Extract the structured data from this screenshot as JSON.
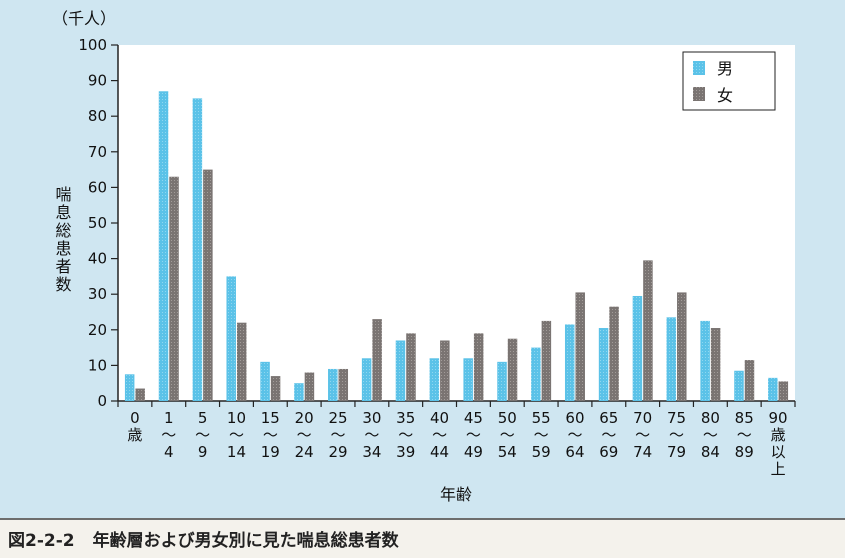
{
  "caption": {
    "figure_number": "図2-2-2",
    "title": "年齢層および男女別に見た喘息総患者数"
  },
  "colors": {
    "panel_background": "#cfe6f1",
    "plot_background": "#ffffff",
    "male": "#5bc2e8",
    "female": "#7a7472",
    "axis": "#222222"
  },
  "chart_data": {
    "type": "bar",
    "unit_label": "（千人）",
    "ylabel": "喘息総患者数",
    "xlabel": "年齢",
    "ylim": [
      0,
      100
    ],
    "yticks": [
      0,
      10,
      20,
      30,
      40,
      50,
      60,
      70,
      80,
      90,
      100
    ],
    "grid": false,
    "legend_position": "top-right",
    "categories": [
      [
        "0",
        "歳"
      ],
      [
        "1",
        "〜",
        "4"
      ],
      [
        "5",
        "〜",
        "9"
      ],
      [
        "10",
        "〜",
        "14"
      ],
      [
        "15",
        "〜",
        "19"
      ],
      [
        "20",
        "〜",
        "24"
      ],
      [
        "25",
        "〜",
        "29"
      ],
      [
        "30",
        "〜",
        "34"
      ],
      [
        "35",
        "〜",
        "39"
      ],
      [
        "40",
        "〜",
        "44"
      ],
      [
        "45",
        "〜",
        "49"
      ],
      [
        "50",
        "〜",
        "54"
      ],
      [
        "55",
        "〜",
        "59"
      ],
      [
        "60",
        "〜",
        "64"
      ],
      [
        "65",
        "〜",
        "69"
      ],
      [
        "70",
        "〜",
        "74"
      ],
      [
        "75",
        "〜",
        "79"
      ],
      [
        "80",
        "〜",
        "84"
      ],
      [
        "85",
        "〜",
        "89"
      ],
      [
        "90",
        "歳",
        "以",
        "上"
      ]
    ],
    "series": [
      {
        "name": "男",
        "values": [
          7.5,
          87,
          85,
          35,
          11,
          5,
          9,
          12,
          17,
          12,
          12,
          11,
          15,
          21.5,
          20.5,
          29.5,
          23.5,
          22.5,
          8.5,
          6.5
        ]
      },
      {
        "name": "女",
        "values": [
          3.5,
          63,
          65,
          22,
          7,
          8,
          9,
          23,
          19,
          17,
          19,
          17.5,
          22.5,
          30.5,
          26.5,
          39.5,
          30.5,
          20.5,
          11.5,
          5.5
        ]
      }
    ]
  }
}
